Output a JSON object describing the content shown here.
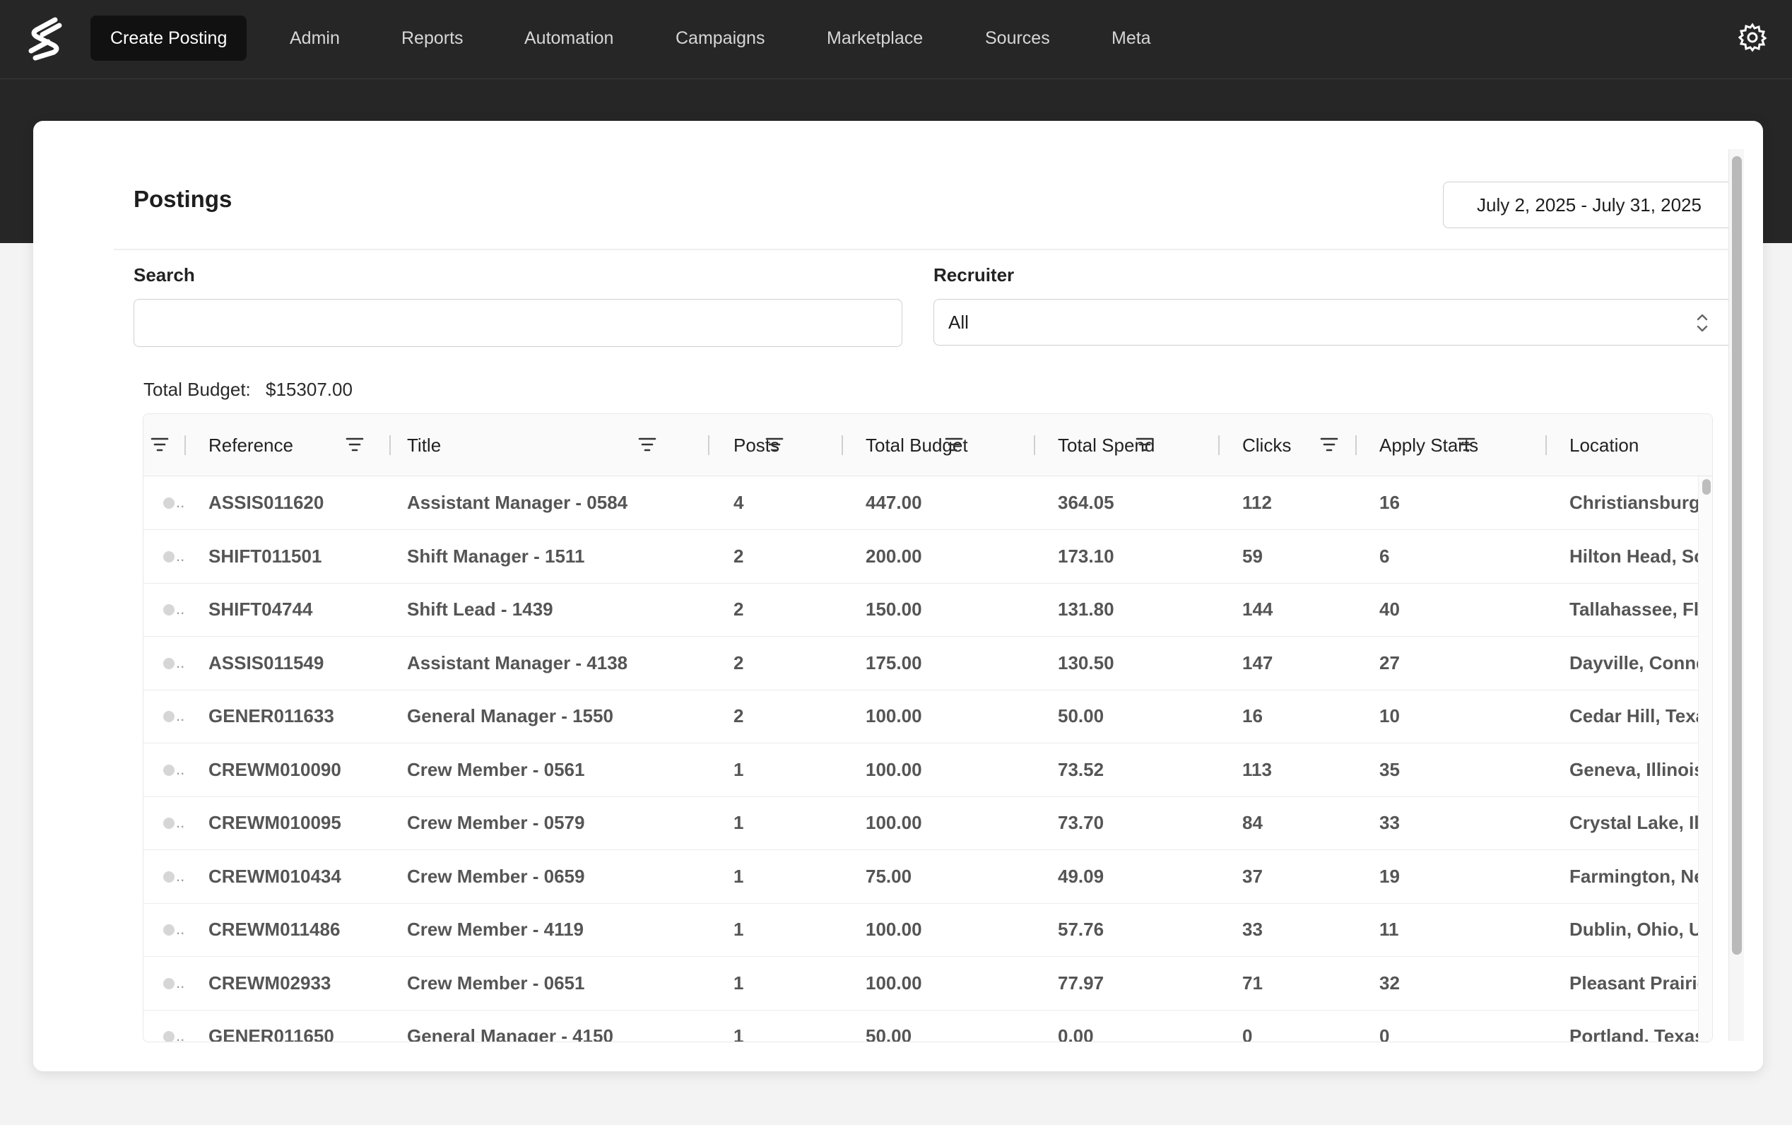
{
  "nav": {
    "items": [
      {
        "label": "Create Posting",
        "active": true
      },
      {
        "label": "Admin"
      },
      {
        "label": "Reports"
      },
      {
        "label": "Automation"
      },
      {
        "label": "Campaigns"
      },
      {
        "label": "Marketplace"
      },
      {
        "label": "Sources"
      },
      {
        "label": "Meta"
      }
    ],
    "logo_icon": "brand-s-logo-icon",
    "settings_icon": "gear-icon"
  },
  "page": {
    "title": "Postings",
    "date_range": "July 2, 2025 - July 31, 2025"
  },
  "filters": {
    "search_label": "Search",
    "search_value": "",
    "recruiter_label": "Recruiter",
    "recruiter_value": "All"
  },
  "summary": {
    "total_budget_label": "Total Budget:",
    "total_budget_value": "$15307.00"
  },
  "table": {
    "columns": [
      "Reference",
      "Title",
      "Posts",
      "Total Budget",
      "Total Spend",
      "Clicks",
      "Apply Starts",
      "Location"
    ],
    "rows": [
      {
        "reference": "ASSIS011620",
        "title": "Assistant Manager - 0584",
        "posts": "4",
        "total_budget": "447.00",
        "total_spend": "364.05",
        "clicks": "112",
        "apply_starts": "16",
        "location": "Christiansburg,"
      },
      {
        "reference": "SHIFT011501",
        "title": "Shift Manager - 1511",
        "posts": "2",
        "total_budget": "200.00",
        "total_spend": "173.10",
        "clicks": "59",
        "apply_starts": "6",
        "location": "Hilton Head, Sc"
      },
      {
        "reference": "SHIFT04744",
        "title": "Shift Lead - 1439",
        "posts": "2",
        "total_budget": "150.00",
        "total_spend": "131.80",
        "clicks": "144",
        "apply_starts": "40",
        "location": "Tallahassee, Flo"
      },
      {
        "reference": "ASSIS011549",
        "title": "Assistant Manager - 4138",
        "posts": "2",
        "total_budget": "175.00",
        "total_spend": "130.50",
        "clicks": "147",
        "apply_starts": "27",
        "location": "Dayville, Conne"
      },
      {
        "reference": "GENER011633",
        "title": "General Manager - 1550",
        "posts": "2",
        "total_budget": "100.00",
        "total_spend": "50.00",
        "clicks": "16",
        "apply_starts": "10",
        "location": "Cedar Hill, Texa"
      },
      {
        "reference": "CREWM010090",
        "title": "Crew Member - 0561",
        "posts": "1",
        "total_budget": "100.00",
        "total_spend": "73.52",
        "clicks": "113",
        "apply_starts": "35",
        "location": "Geneva, Illinois"
      },
      {
        "reference": "CREWM010095",
        "title": "Crew Member - 0579",
        "posts": "1",
        "total_budget": "100.00",
        "total_spend": "73.70",
        "clicks": "84",
        "apply_starts": "33",
        "location": "Crystal Lake, Ill"
      },
      {
        "reference": "CREWM010434",
        "title": "Crew Member - 0659",
        "posts": "1",
        "total_budget": "75.00",
        "total_spend": "49.09",
        "clicks": "37",
        "apply_starts": "19",
        "location": "Farmington, Ne"
      },
      {
        "reference": "CREWM011486",
        "title": "Crew Member - 4119",
        "posts": "1",
        "total_budget": "100.00",
        "total_spend": "57.76",
        "clicks": "33",
        "apply_starts": "11",
        "location": "Dublin, Ohio, U"
      },
      {
        "reference": "CREWM02933",
        "title": "Crew Member - 0651",
        "posts": "1",
        "total_budget": "100.00",
        "total_spend": "77.97",
        "clicks": "71",
        "apply_starts": "32",
        "location": "Pleasant Prairie"
      },
      {
        "reference": "GENER011650",
        "title": "General Manager - 4150",
        "posts": "1",
        "total_budget": "50.00",
        "total_spend": "0.00",
        "clicks": "0",
        "apply_starts": "0",
        "location": "Portland, Texas"
      }
    ]
  },
  "colors": {
    "nav_bg": "#262626",
    "active_nav_bg": "#111111",
    "page_bg": "#f3f3f3"
  }
}
